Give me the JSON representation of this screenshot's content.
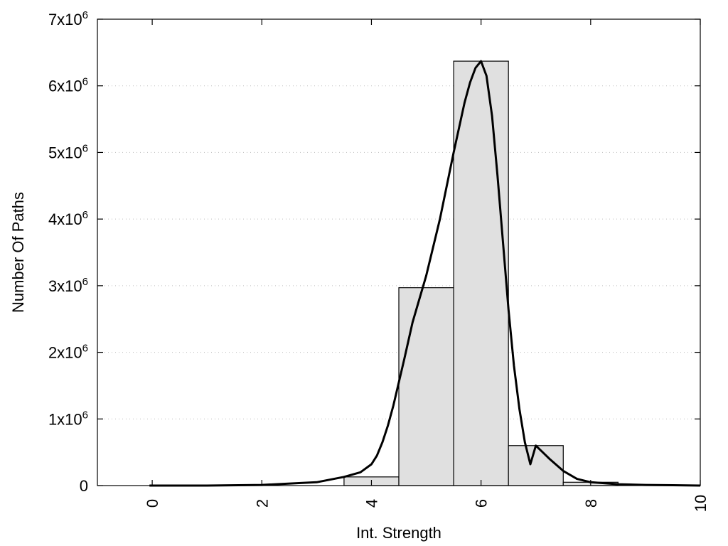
{
  "chart_data": {
    "type": "bar",
    "xlabel": "Int. Strength",
    "ylabel": "Number Of Paths",
    "xlim": [
      -1,
      10
    ],
    "ylim": [
      0,
      7000000
    ],
    "grid": "y-dotted",
    "legend": "none",
    "bar_width": 1,
    "x": [
      0,
      1,
      2,
      3,
      4,
      5,
      6,
      7,
      8,
      9
    ],
    "values": [
      0,
      0,
      0,
      0,
      130000,
      2970000,
      6370000,
      600000,
      50000,
      0
    ],
    "x_ticks": [
      {
        "value": 0,
        "label": "0"
      },
      {
        "value": 2,
        "label": "2"
      },
      {
        "value": 4,
        "label": "4"
      },
      {
        "value": 6,
        "label": "6"
      },
      {
        "value": 8,
        "label": "8"
      },
      {
        "value": 10,
        "label": "10"
      }
    ],
    "y_ticks": [
      {
        "value": 0,
        "mant": "0",
        "exp": ""
      },
      {
        "value": 1000000,
        "mant": "1x10",
        "exp": "6"
      },
      {
        "value": 2000000,
        "mant": "2x10",
        "exp": "6"
      },
      {
        "value": 3000000,
        "mant": "3x10",
        "exp": "6"
      },
      {
        "value": 4000000,
        "mant": "4x10",
        "exp": "6"
      },
      {
        "value": 5000000,
        "mant": "5x10",
        "exp": "6"
      },
      {
        "value": 6000000,
        "mant": "6x10",
        "exp": "6"
      },
      {
        "value": 7000000,
        "mant": "7x10",
        "exp": "6"
      }
    ],
    "fit_curve": {
      "type": "line",
      "x": [
        -0.05,
        1,
        2,
        3,
        3.5,
        3.8,
        4,
        4.1,
        4.2,
        4.3,
        4.4,
        4.5,
        4.6,
        4.75,
        5,
        5.25,
        5.5,
        5.7,
        5.8,
        5.9,
        6,
        6.1,
        6.2,
        6.3,
        6.4,
        6.5,
        6.6,
        6.7,
        6.8,
        6.9,
        7,
        7.25,
        7.5,
        7.75,
        8,
        8.5,
        9,
        9.5,
        10
      ],
      "y": [
        0,
        0,
        10000,
        50000,
        130000,
        200000,
        320000,
        450000,
        650000,
        900000,
        1200000,
        1550000,
        1900000,
        2450000,
        3150000,
        4000000,
        5000000,
        5750000,
        6050000,
        6270000,
        6370000,
        6150000,
        5550000,
        4650000,
        3650000,
        2650000,
        1800000,
        1150000,
        650000,
        320000,
        600000,
        400000,
        220000,
        100000,
        50000,
        20000,
        10000,
        5000,
        0
      ]
    }
  }
}
